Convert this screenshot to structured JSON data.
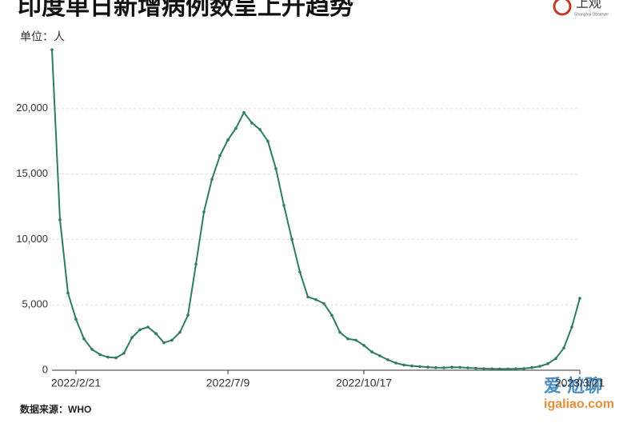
{
  "logo": {
    "name": "上观",
    "subtitle": "Shanghai Observer"
  },
  "watermark": {
    "title": "爱·尬聊",
    "url": "igaliao.com"
  },
  "chart_data": {
    "type": "line",
    "title": "印度单日新增病例数呈上升趋势",
    "y_label": "单位：人",
    "source": "数据来源：WHO",
    "color": "#2e7d5b",
    "grid": true,
    "categories": [
      null,
      null,
      null,
      "2022/2/21",
      null,
      null,
      null,
      null,
      null,
      null,
      null,
      null,
      null,
      null,
      null,
      null,
      null,
      null,
      null,
      null,
      null,
      null,
      "2022/7/9",
      null,
      null,
      null,
      null,
      null,
      null,
      null,
      null,
      null,
      null,
      null,
      null,
      null,
      null,
      null,
      null,
      "2022/10/17",
      null,
      null,
      null,
      null,
      null,
      null,
      null,
      null,
      null,
      null,
      null,
      null,
      null,
      null,
      null,
      null,
      null,
      null,
      null,
      null,
      null,
      null,
      null,
      null,
      null,
      null,
      "2023/3/21"
    ],
    "values": [
      24500,
      11500,
      5900,
      3900,
      2400,
      1600,
      1200,
      1000,
      950,
      1300,
      2500,
      3100,
      3300,
      2800,
      2100,
      2300,
      2900,
      4200,
      8100,
      12100,
      14600,
      16400,
      17600,
      18500,
      19700,
      18900,
      18400,
      17500,
      15400,
      12600,
      10000,
      7500,
      5600,
      5400,
      5100,
      4200,
      2900,
      2400,
      2300,
      1900,
      1400,
      1100,
      800,
      550,
      400,
      330,
      280,
      240,
      200,
      190,
      230,
      220,
      180,
      150,
      120,
      110,
      100,
      100,
      110,
      130,
      200,
      300,
      500,
      900,
      1700,
      3300,
      5500
    ],
    "ylim": [
      0,
      25000
    ],
    "yticks": [
      0,
      {
        "value": 5000,
        "label": "5,000"
      },
      {
        "value": 10000,
        "label": "10,000"
      },
      {
        "value": 15000,
        "label": "15,000"
      },
      {
        "value": 20000,
        "label": "20,000"
      }
    ]
  }
}
